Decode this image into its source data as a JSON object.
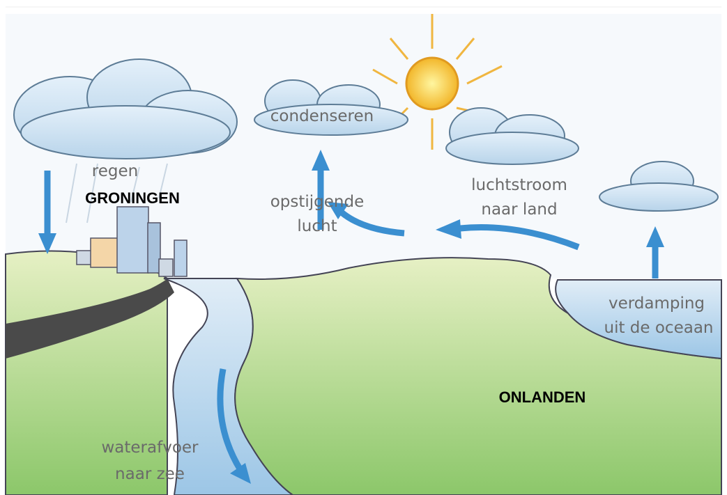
{
  "labels": {
    "regen": "regen",
    "city": "GRONINGEN",
    "condense": "condenseren",
    "rising": [
      "opstijgende",
      "lucht"
    ],
    "airflow": [
      "luchtstroom",
      "naar land"
    ],
    "evaporation": [
      "verdamping",
      "uit de oceaan"
    ],
    "runoff": [
      "waterafvoer",
      "naar zee"
    ],
    "area": "ONLANDEN"
  }
}
